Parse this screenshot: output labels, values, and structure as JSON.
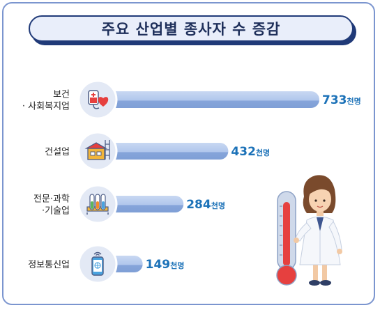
{
  "title": "주요 산업별 종사자 수 증감",
  "colors": {
    "frame": "#7b95cf",
    "title_bg": "#e9eefa",
    "title_border": "#203a78",
    "bar_light": "#b9cdee",
    "bar_dark": "#7f9fd6",
    "value_text": "#1c72b8",
    "icon_circle": "#e3e9f5"
  },
  "chart_data": {
    "type": "bar",
    "orientation": "horizontal",
    "unit": "천명",
    "categories": [
      {
        "lines": [
          "보건",
          "· 사회복지업"
        ],
        "icon": "iv-blood-bag-heart-icon",
        "value": 733,
        "value_label": "733"
      },
      {
        "lines": [
          "건설업"
        ],
        "icon": "construction-building-icon",
        "value": 432,
        "value_label": "432"
      },
      {
        "lines": [
          "전문·과학",
          "·기술업"
        ],
        "icon": "test-tubes-icon",
        "value": 284,
        "value_label": "284"
      },
      {
        "lines": [
          "정보통신업"
        ],
        "icon": "smartphone-wifi-icon",
        "value": 149,
        "value_label": "149"
      }
    ]
  },
  "illustration": {
    "name": "scientist-with-thermometer"
  }
}
